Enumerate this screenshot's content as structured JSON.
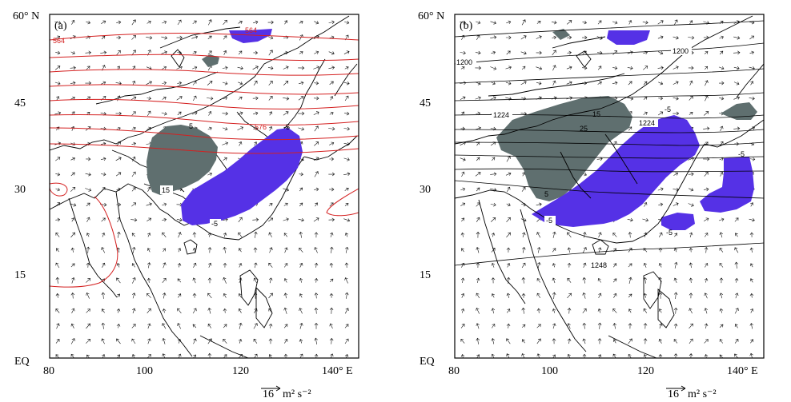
{
  "panels": [
    {
      "id": "a",
      "label": "(a)",
      "x_ticks": [
        "80",
        "100",
        "120",
        "140° E"
      ],
      "y_ticks": [
        "60° N",
        "45",
        "30",
        "15",
        "EQ"
      ],
      "red_contour_labels": [
        "564",
        "564",
        "576"
      ],
      "shading_labels": [
        "5",
        "15",
        "-5",
        "-5"
      ],
      "scale_label": "16",
      "scale_units": "m² s⁻²"
    },
    {
      "id": "b",
      "label": "(b)",
      "x_ticks": [
        "80",
        "100",
        "120",
        "140° E"
      ],
      "y_ticks": [
        "60° N",
        "45",
        "30",
        "15",
        "EQ"
      ],
      "contour_labels": [
        "1200",
        "1200",
        "1224",
        "1224",
        "1248"
      ],
      "shading_labels": [
        "15",
        "25",
        "5",
        "-5",
        "-5",
        "-5",
        "-5"
      ],
      "scale_label": "16",
      "scale_units": "m² s⁻²"
    }
  ],
  "colors": {
    "positive_shading": "#5f6f6f",
    "negative_shading": "#5531e6",
    "height_contour_a": "#d42020",
    "height_contour_b": "#000000"
  }
}
